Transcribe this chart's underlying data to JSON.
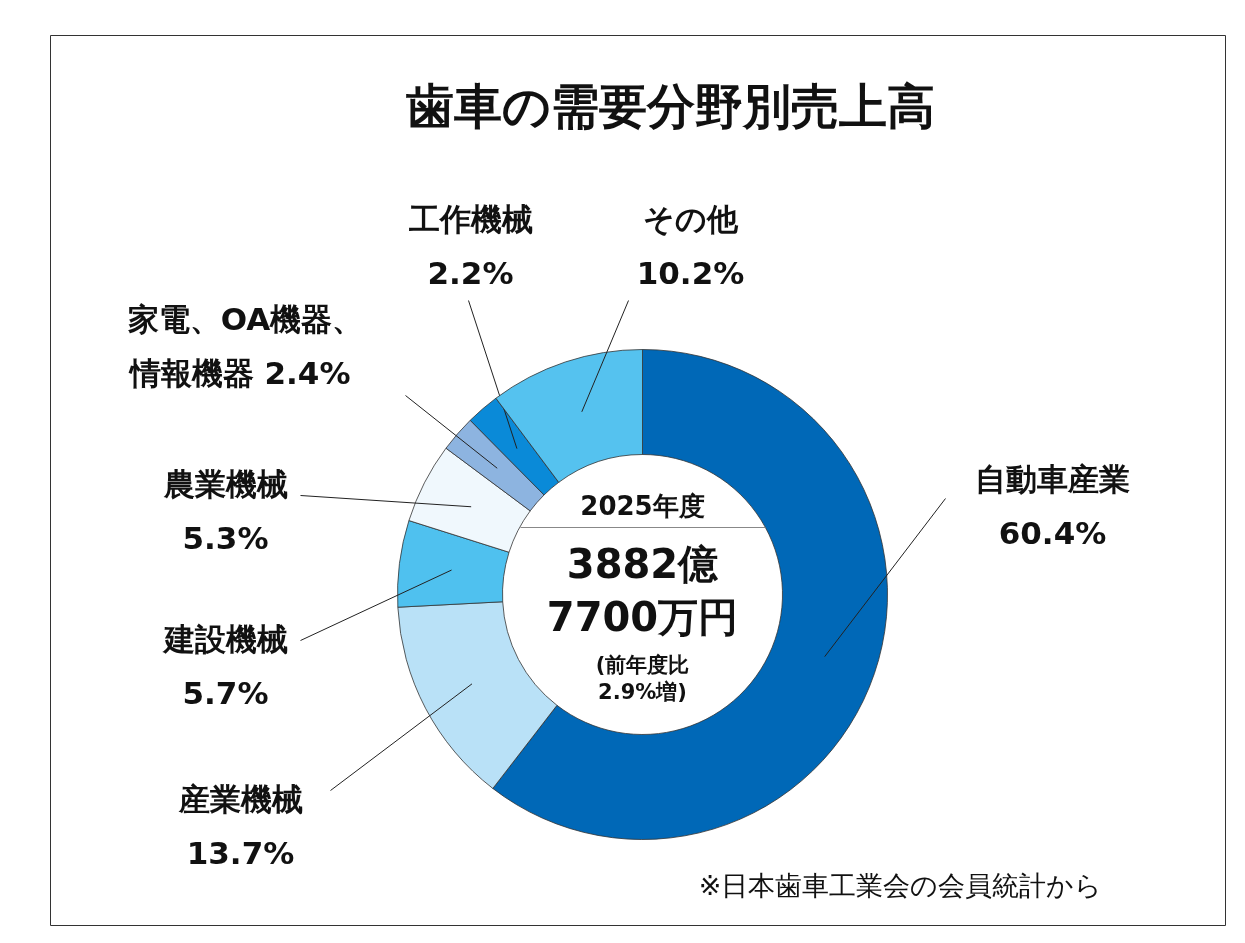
{
  "chart_data": {
    "type": "donut",
    "title": "歯車の需要分野別売上高",
    "categories": [
      "自動車産業",
      "産業機械",
      "建設機械",
      "農業機械",
      "家電、OA機器、情報機器",
      "工作機械",
      "その他"
    ],
    "values": [
      60.4,
      13.7,
      5.7,
      5.3,
      2.4,
      2.2,
      10.2
    ],
    "value_labels": [
      "60.4%",
      "13.7%",
      "5.7%",
      "5.3%",
      "2.4%",
      "2.2%",
      "10.2%"
    ],
    "colors": [
      "#0068b7",
      "#b9e1f7",
      "#4fc1ef",
      "#f0f8fd",
      "#8db4e0",
      "#0a8ad8",
      "#55c2ef"
    ],
    "annotations": [
      "2025年度",
      "3882億\n7700万円",
      "(前年度比\n2.9%増)",
      "※日本歯車工業会の会員統計から"
    ]
  }
}
